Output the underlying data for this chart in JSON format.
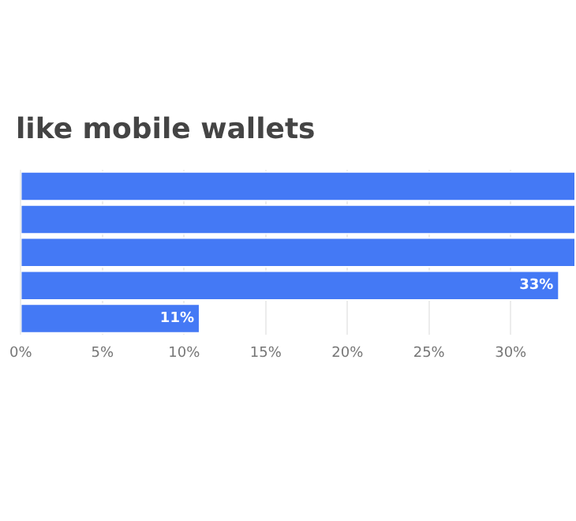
{
  "chart_data": {
    "type": "bar",
    "orientation": "horizontal",
    "title": "like mobile wallets",
    "categories": [
      null,
      null,
      null,
      null,
      null
    ],
    "values": [
      34,
      34,
      34,
      33,
      11
    ],
    "value_labels": [
      null,
      null,
      null,
      "33%",
      "11%"
    ],
    "color": "#4479f5",
    "xlim": [
      0,
      34
    ],
    "xticks": [
      {
        "value": 0,
        "label": "0%"
      },
      {
        "value": 5,
        "label": "5%"
      },
      {
        "value": 10,
        "label": "10%"
      },
      {
        "value": 15,
        "label": "15%"
      },
      {
        "value": 20,
        "label": "20%"
      },
      {
        "value": 25,
        "label": "25%"
      },
      {
        "value": 30,
        "label": "30%"
      }
    ],
    "grid": "x",
    "legend": false
  }
}
